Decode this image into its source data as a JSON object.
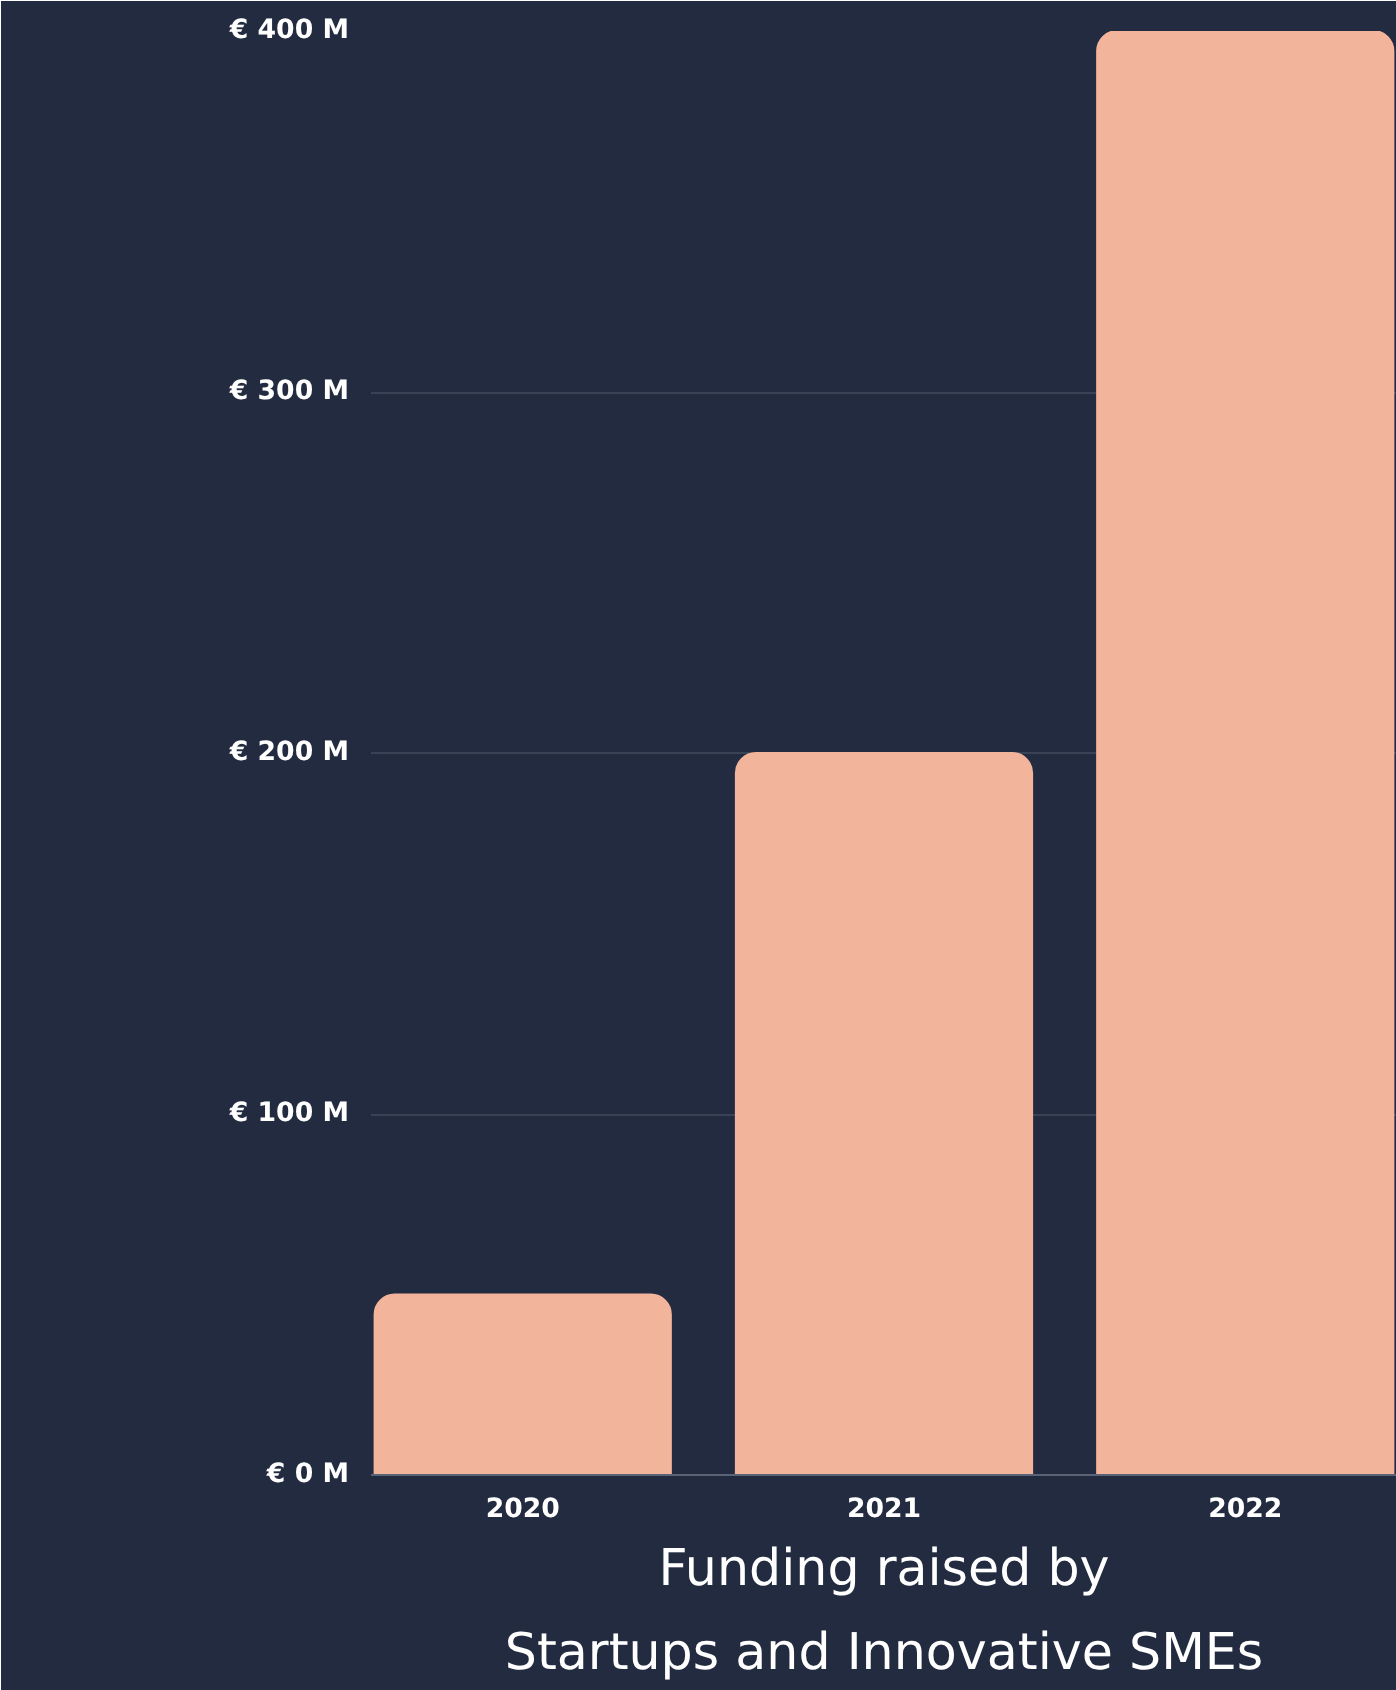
{
  "chart_data": {
    "type": "bar",
    "title": "Funding raised by\nStartups and Innovative SMEs",
    "categories": [
      "2020",
      "2021",
      "2022"
    ],
    "values": [
      50,
      200,
      400
    ],
    "color": "#f2b49a",
    "ylim": [
      0,
      400
    ],
    "yticks": [
      {
        "value": 0,
        "label": "€ 0 M"
      },
      {
        "value": 100,
        "label": "€ 100 M"
      },
      {
        "value": 200,
        "label": "€ 200 M"
      },
      {
        "value": 300,
        "label": "€ 300 M"
      },
      {
        "value": 400,
        "label": "€ 400 M"
      }
    ],
    "grid": "y"
  }
}
